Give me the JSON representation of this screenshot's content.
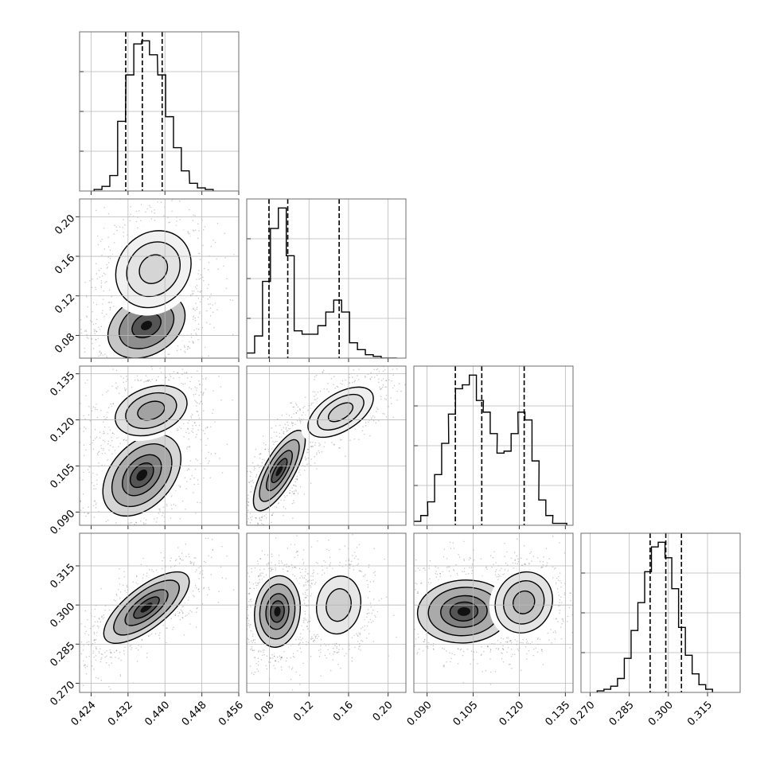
{
  "chart_data": {
    "type": "corner",
    "grid": true,
    "parameters": [
      {
        "ticks": [
          0.424,
          0.432,
          0.44,
          0.448,
          0.456
        ],
        "tick_labels": [
          "0.424",
          "0.432",
          "0.440",
          "0.448",
          "0.456"
        ],
        "range": [
          0.4215,
          0.456
        ],
        "quantiles": [
          0.4315,
          0.4351,
          0.4394
        ],
        "hist_x": [
          0.4255,
          0.4272,
          0.4289,
          0.4306,
          0.4324,
          0.4341,
          0.4358,
          0.4375,
          0.4393,
          0.441,
          0.4427,
          0.4444,
          0.4462,
          0.4479,
          0.4496
        ],
        "hist_counts": [
          1,
          3,
          10,
          45,
          75,
          95,
          97,
          88,
          75,
          48,
          28,
          13,
          5,
          2,
          1
        ]
      },
      {
        "ticks": [
          0.08,
          0.12,
          0.16,
          0.2
        ],
        "tick_labels": [
          "0.08",
          "0.12",
          "0.16",
          "0.20"
        ],
        "range": [
          0.057,
          0.218
        ],
        "quantiles": [
          0.0795,
          0.0985,
          0.1505
        ],
        "hist_x": [
          0.061,
          0.069,
          0.077,
          0.085,
          0.093,
          0.101,
          0.109,
          0.117,
          0.125,
          0.133,
          0.141,
          0.149,
          0.157,
          0.165,
          0.173,
          0.181,
          0.189,
          0.197,
          0.205
        ],
        "hist_counts": [
          3,
          13,
          45,
          76,
          88,
          60,
          16,
          14,
          14,
          19,
          27,
          34,
          27,
          9,
          5,
          2,
          1,
          0,
          0
        ]
      },
      {
        "ticks": [
          0.09,
          0.105,
          0.12,
          0.135
        ],
        "tick_labels": [
          "0.090",
          "0.105",
          "0.120",
          "0.135"
        ],
        "range": [
          0.0857,
          0.1375
        ],
        "quantiles": [
          0.0992,
          0.1078,
          0.1216
        ],
        "hist_x": [
          0.0868,
          0.0891,
          0.0913,
          0.0936,
          0.0959,
          0.0981,
          0.1004,
          0.1026,
          0.1049,
          0.1072,
          0.1094,
          0.1117,
          0.1139,
          0.1162,
          0.1185,
          0.1207,
          0.123,
          0.1253,
          0.1275,
          0.1298,
          0.132,
          0.1343
        ],
        "hist_counts": [
          2,
          5,
          12,
          26,
          42,
          57,
          70,
          72,
          77,
          64,
          58,
          47,
          37,
          38,
          47,
          58,
          54,
          33,
          13,
          5,
          1,
          1
        ]
      },
      {
        "ticks": [
          0.27,
          0.285,
          0.3,
          0.315
        ],
        "tick_labels": [
          "0.270",
          "0.285",
          "0.300",
          "0.315"
        ],
        "range": [
          0.2665,
          0.3275
        ],
        "quantiles": [
          0.293,
          0.299,
          0.305
        ],
        "hist_x": [
          0.274,
          0.2766,
          0.2792,
          0.2818,
          0.2844,
          0.287,
          0.2896,
          0.2922,
          0.2948,
          0.2974,
          0.3,
          0.3026,
          0.3052,
          0.3078,
          0.3104,
          0.313,
          0.3156
        ],
        "hist_counts": [
          1,
          2,
          4,
          9,
          22,
          40,
          58,
          78,
          94,
          97,
          87,
          67,
          42,
          24,
          12,
          5,
          2
        ]
      }
    ],
    "contours": [
      {
        "row": 1,
        "col": 0,
        "blobs": [
          {
            "cx": 0.436,
            "cy": 0.09,
            "sx": 0.0043,
            "sy": 0.017,
            "rho": 0.3,
            "levels": [
              0.5,
              1.2,
              2.0
            ],
            "dark": 1.0
          },
          {
            "cx": 0.4375,
            "cy": 0.147,
            "sx": 0.0042,
            "sy": 0.02,
            "rho": 0.15,
            "levels": [
              0.5,
              1.2,
              2.0
            ],
            "dark": 0.25
          }
        ]
      },
      {
        "row": 2,
        "col": 0,
        "blobs": [
          {
            "cx": 0.435,
            "cy": 0.102,
            "sx": 0.0042,
            "sy": 0.0066,
            "rho": 0.4,
            "levels": [
              0.5,
              1.2,
              2.0,
              2.6
            ],
            "dark": 1.0
          },
          {
            "cx": 0.437,
            "cy": 0.123,
            "sx": 0.004,
            "sy": 0.0042,
            "rho": 0.3,
            "levels": [
              0.5,
              1.2,
              2.0
            ],
            "dark": 0.55
          }
        ]
      },
      {
        "row": 2,
        "col": 1,
        "blobs": [
          {
            "cx": 0.09,
            "cy": 0.1035,
            "sx": 0.013,
            "sy": 0.0065,
            "rho": 0.75,
            "levels": [
              0.5,
              1.2,
              2.0,
              2.6
            ],
            "dark": 1.0
          },
          {
            "cx": 0.152,
            "cy": 0.1225,
            "sx": 0.017,
            "sy": 0.0042,
            "rho": 0.55,
            "levels": [
              0.5,
              1.2,
              2.0
            ],
            "dark": 0.3
          }
        ]
      },
      {
        "row": 3,
        "col": 0,
        "blobs": [
          {
            "cx": 0.436,
            "cy": 0.299,
            "sx": 0.0046,
            "sy": 0.0068,
            "rho": 0.72,
            "levels": [
              0.5,
              1.2,
              2.0,
              2.6
            ],
            "dark": 1.0
          }
        ]
      },
      {
        "row": 3,
        "col": 1,
        "blobs": [
          {
            "cx": 0.088,
            "cy": 0.2975,
            "sx": 0.0115,
            "sy": 0.0068,
            "rho": 0.1,
            "levels": [
              0.5,
              1.2,
              2.0,
              2.6
            ],
            "dark": 1.0
          },
          {
            "cx": 0.15,
            "cy": 0.3,
            "sx": 0.0125,
            "sy": 0.0062,
            "rho": 0.1,
            "levels": [
              0.5,
              1.2
            ],
            "dark": 0.28
          }
        ]
      },
      {
        "row": 3,
        "col": 2,
        "blobs": [
          {
            "cx": 0.102,
            "cy": 0.2975,
            "sx": 0.0075,
            "sy": 0.006,
            "rho": 0.05,
            "levels": [
              0.5,
              1.2,
              2.0,
              2.6
            ],
            "dark": 1.0
          },
          {
            "cx": 0.1215,
            "cy": 0.301,
            "sx": 0.0048,
            "sy": 0.006,
            "rho": 0.1,
            "levels": [
              0.5,
              1.2,
              2.0
            ],
            "dark": 0.5
          }
        ]
      }
    ]
  }
}
